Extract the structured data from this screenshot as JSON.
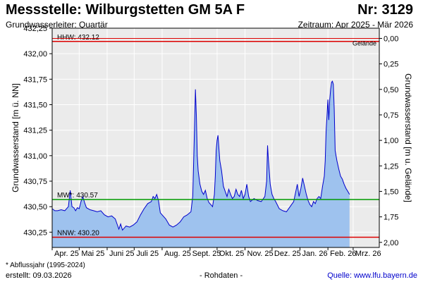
{
  "header": {
    "title": "Messstelle: Wilburgstetten GM 5A F",
    "nr": "Nr: 3129",
    "subtitle_left": "Grundwasserleiter: Quartär",
    "subtitle_right": "Zeitraum: Apr 2025 - Mär 2026"
  },
  "footer": {
    "footnote": "* Abflussjahr (1995-2024)",
    "created": "erstellt:  09.03.2026",
    "rohdaten": "- Rohdaten -",
    "source": "Quelle:  www.lfu.bayern.de"
  },
  "colors": {
    "line": "#0000cc",
    "fill": "#9ec2ee",
    "mw": "#009900",
    "extreme": "#dd0000",
    "grid": "#ffffff",
    "plot_bg": "#ebebeb"
  },
  "chart_data": {
    "type": "area",
    "ylabel": "Grundwasserstand [m ü. NN]",
    "ylabel_right": "Grundwasserstand [m u. Gelände]",
    "ylim": [
      430.1,
      432.25
    ],
    "yticks": [
      "432,25",
      "432,00",
      "431,75",
      "431,50",
      "431,25",
      "431,00",
      "430,75",
      "430,50",
      "430,25"
    ],
    "ytick_values": [
      432.25,
      432.0,
      431.75,
      431.5,
      431.25,
      431.0,
      430.75,
      430.5,
      430.25
    ],
    "yticks_right": [
      "0,00",
      "0,25",
      "0,50",
      "0,75",
      "1,00",
      "1,25",
      "1,50",
      "1,75",
      "2,00"
    ],
    "ytick_right_values": [
      432.15,
      431.9,
      431.65,
      431.4,
      431.15,
      430.9,
      430.65,
      430.4,
      430.15
    ],
    "xlim": [
      0,
      363
    ],
    "xtick_labels": [
      "Apr. 25",
      "Mai 25",
      "Juni 25",
      "Juli 25",
      "Aug. 25",
      "Sept. 25",
      "Okt. 25",
      "Nov. 25",
      "Dez. 25",
      "Jan. 26",
      "Feb. 26",
      "Mrz. 26"
    ],
    "xtick_days": [
      0,
      30,
      61,
      91,
      122,
      153,
      183,
      214,
      244,
      275,
      306,
      334
    ],
    "reference_lines": [
      {
        "label": "HHW: 432.12",
        "value": 432.12,
        "kind": "extreme"
      },
      {
        "label": "MW*: 430.57",
        "value": 430.57,
        "kind": "mean"
      },
      {
        "label": "NNW: 430.20",
        "value": 430.2,
        "kind": "extreme"
      }
    ],
    "gelaende": {
      "label": "Gelände",
      "value": 432.15
    },
    "series": [
      {
        "x": [
          0,
          3,
          6,
          10,
          14,
          18,
          20,
          22,
          24,
          26,
          28,
          30,
          32,
          34,
          36,
          38,
          42,
          46,
          50,
          54,
          58,
          62,
          66,
          70,
          74,
          76,
          78,
          82,
          86,
          90,
          94,
          98,
          102,
          106,
          110,
          112,
          114,
          116,
          118,
          120,
          122,
          126,
          130,
          134,
          138,
          142,
          146,
          150,
          154,
          156,
          157,
          158,
          159,
          160,
          161,
          162,
          164,
          166,
          168,
          170,
          172,
          174,
          176,
          178,
          180,
          181,
          182,
          183,
          184,
          186,
          188,
          190,
          192,
          194,
          196,
          198,
          200,
          202,
          204,
          206,
          208,
          210,
          212,
          214,
          216,
          218,
          220,
          224,
          228,
          232,
          236,
          238,
          239,
          240,
          242,
          244,
          246,
          248,
          252,
          256,
          260,
          264,
          268,
          272,
          274,
          276,
          278,
          280,
          282,
          284,
          286,
          288,
          290,
          292,
          294,
          296,
          298,
          300,
          302,
          303,
          304,
          305,
          306,
          307,
          308,
          309,
          310,
          311,
          312,
          313,
          314,
          316,
          318,
          320,
          322,
          324,
          326,
          328,
          330
        ],
        "y": [
          430.48,
          430.46,
          430.46,
          430.47,
          430.46,
          430.5,
          430.66,
          430.5,
          430.49,
          430.46,
          430.49,
          430.48,
          430.55,
          430.6,
          430.54,
          430.49,
          430.47,
          430.46,
          430.45,
          430.46,
          430.42,
          430.4,
          430.41,
          430.38,
          430.28,
          430.33,
          430.27,
          430.31,
          430.3,
          430.32,
          430.35,
          430.42,
          430.48,
          430.53,
          430.55,
          430.6,
          430.58,
          430.62,
          430.56,
          430.44,
          430.42,
          430.38,
          430.32,
          430.3,
          430.32,
          430.35,
          430.4,
          430.42,
          430.45,
          430.6,
          430.95,
          431.3,
          431.65,
          431.4,
          431.0,
          430.85,
          430.72,
          430.65,
          430.62,
          430.66,
          430.58,
          430.54,
          430.52,
          430.5,
          430.62,
          430.8,
          431.05,
          431.15,
          431.2,
          430.95,
          430.85,
          430.7,
          430.65,
          430.6,
          430.67,
          430.62,
          430.58,
          430.6,
          430.67,
          430.62,
          430.6,
          430.66,
          430.58,
          430.62,
          430.72,
          430.6,
          430.55,
          430.58,
          430.56,
          430.55,
          430.6,
          430.75,
          431.1,
          430.95,
          430.72,
          430.62,
          430.58,
          430.55,
          430.48,
          430.46,
          430.45,
          430.5,
          430.55,
          430.72,
          430.6,
          430.68,
          430.78,
          430.7,
          430.62,
          430.56,
          430.52,
          430.5,
          430.55,
          430.53,
          430.58,
          430.6,
          430.58,
          430.7,
          430.8,
          430.95,
          431.25,
          431.4,
          431.55,
          431.35,
          431.55,
          431.65,
          431.72,
          431.73,
          431.7,
          431.45,
          431.05,
          430.95,
          430.87,
          430.8,
          430.77,
          430.72,
          430.68,
          430.65,
          430.62
        ]
      }
    ]
  }
}
